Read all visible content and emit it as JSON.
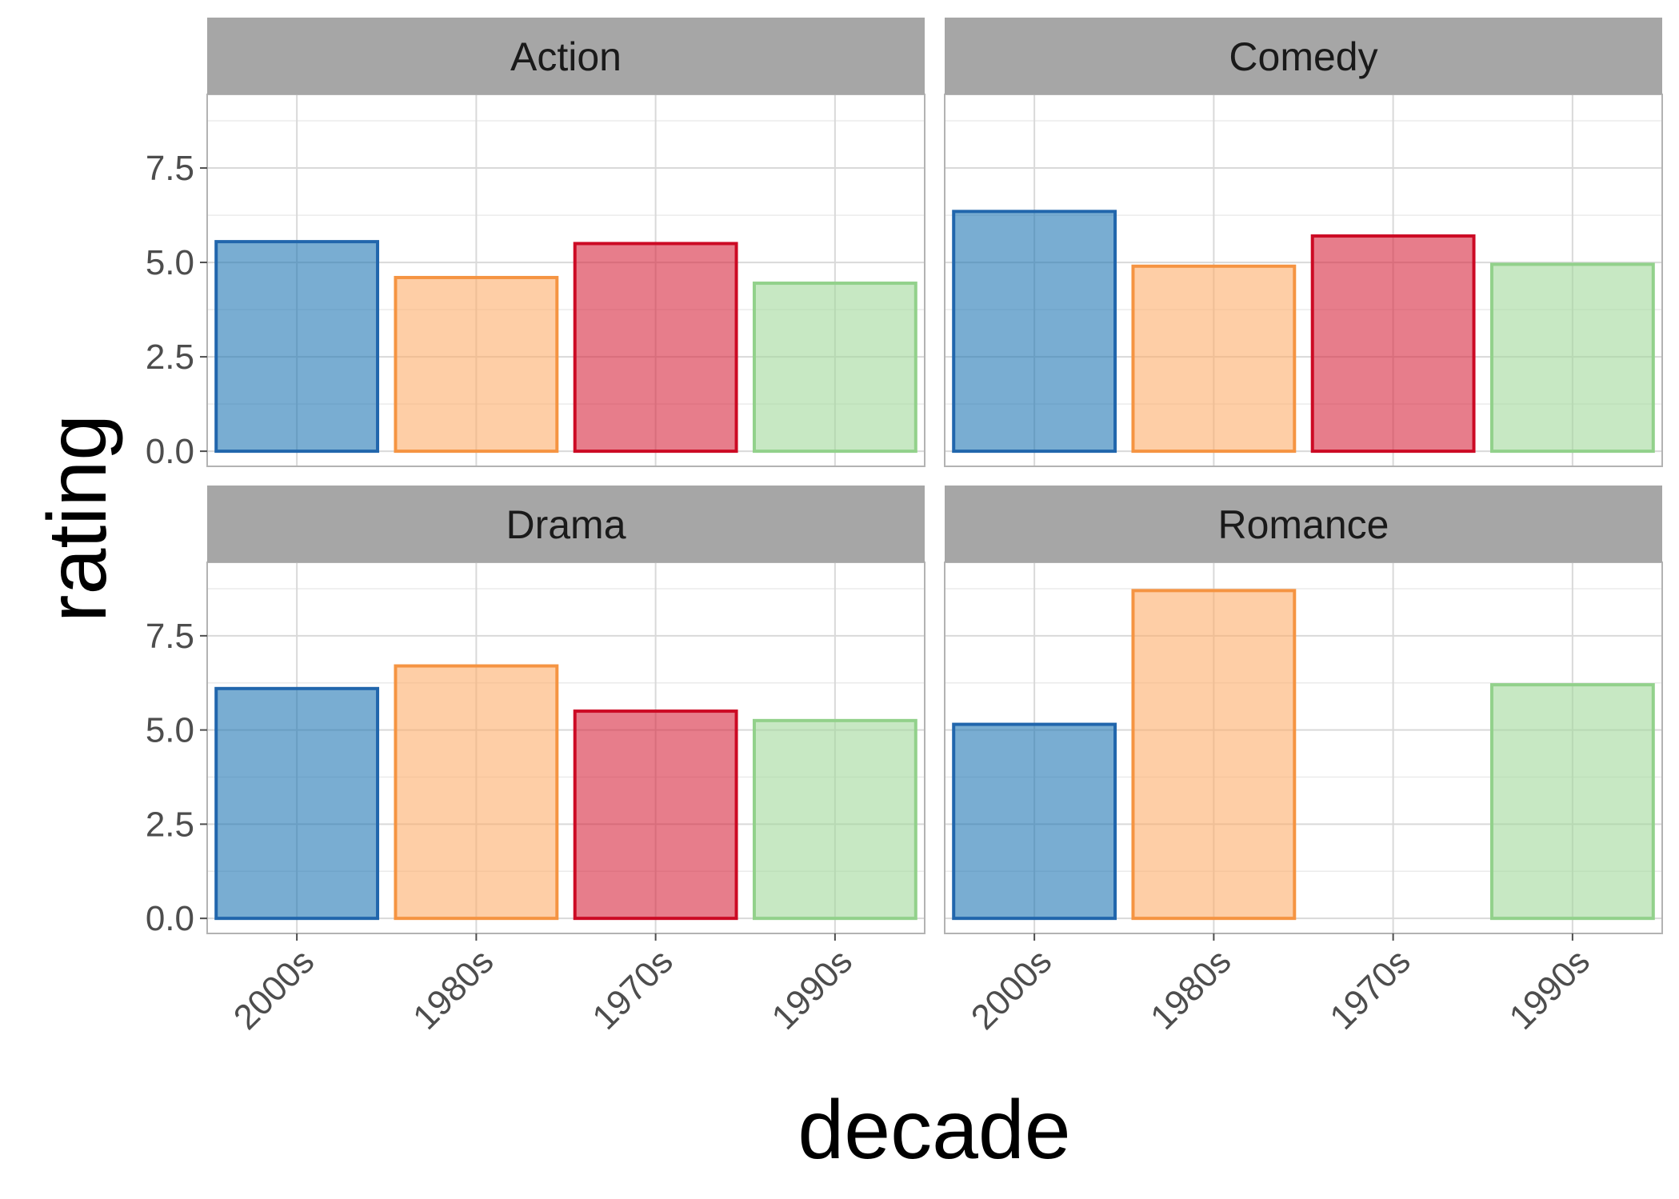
{
  "chart_data": {
    "type": "bar",
    "xlabel": "decade",
    "ylabel": "rating",
    "categories": [
      "2000s",
      "1980s",
      "1970s",
      "1990s"
    ],
    "ylim": [
      -0.4,
      9.45
    ],
    "yticks": [
      0.0,
      2.5,
      5.0,
      7.5
    ],
    "ytick_labels": [
      "0.0",
      "2.5",
      "5.0",
      "7.5"
    ],
    "grid": true,
    "legend": "none",
    "colors": {
      "2000s": {
        "fill": "#1f77b4",
        "stroke": "#2166ac"
      },
      "1980s": {
        "fill": "#fdae6b",
        "stroke": "#f59442"
      },
      "1970s": {
        "fill": "#d7263d",
        "stroke": "#cc0a24"
      },
      "1990s": {
        "fill": "#a1d99b",
        "stroke": "#92d18b"
      }
    },
    "facets": [
      {
        "name": "Action",
        "values": [
          5.55,
          4.6,
          5.5,
          4.45
        ]
      },
      {
        "name": "Comedy",
        "values": [
          6.35,
          4.9,
          5.7,
          4.95
        ]
      },
      {
        "name": "Drama",
        "values": [
          6.1,
          6.7,
          5.5,
          5.25
        ]
      },
      {
        "name": "Romance",
        "values": [
          5.15,
          8.7,
          null,
          6.2
        ]
      }
    ]
  }
}
